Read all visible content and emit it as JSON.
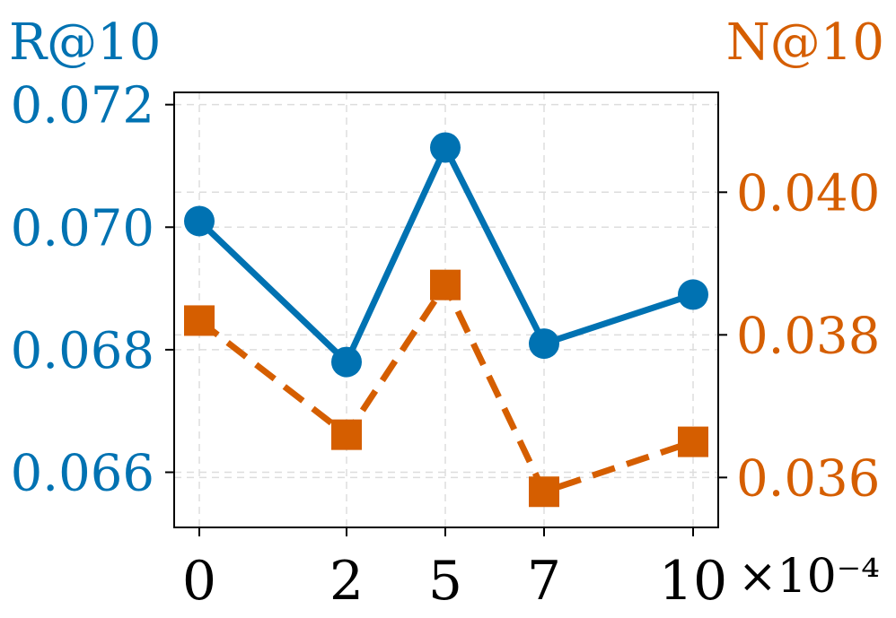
{
  "chart_data": {
    "type": "line",
    "categories": [
      "0",
      "2",
      "5",
      "7",
      "10"
    ],
    "x_exponent_label": "×10⁻⁴",
    "grid": true,
    "colors": {
      "left": "#0072B2",
      "right": "#D55E00"
    },
    "left_axis": {
      "label": "R@10",
      "ylim": [
        0.0651,
        0.0722
      ],
      "ticks": [
        "0.066",
        "0.068",
        "0.070",
        "0.072"
      ]
    },
    "right_axis": {
      "label": "N@10",
      "ylim": [
        0.0353,
        0.0414
      ],
      "ticks": [
        "0.036",
        "0.038",
        "0.040"
      ]
    },
    "series": [
      {
        "axis": "left",
        "marker": "circle",
        "style": "solid",
        "values": [
          0.0701,
          0.0678,
          0.0713,
          0.0681,
          0.0689
        ]
      },
      {
        "axis": "right",
        "marker": "square",
        "style": "dashed",
        "values": [
          0.0382,
          0.0366,
          0.0387,
          0.0358,
          0.0365
        ]
      }
    ]
  }
}
